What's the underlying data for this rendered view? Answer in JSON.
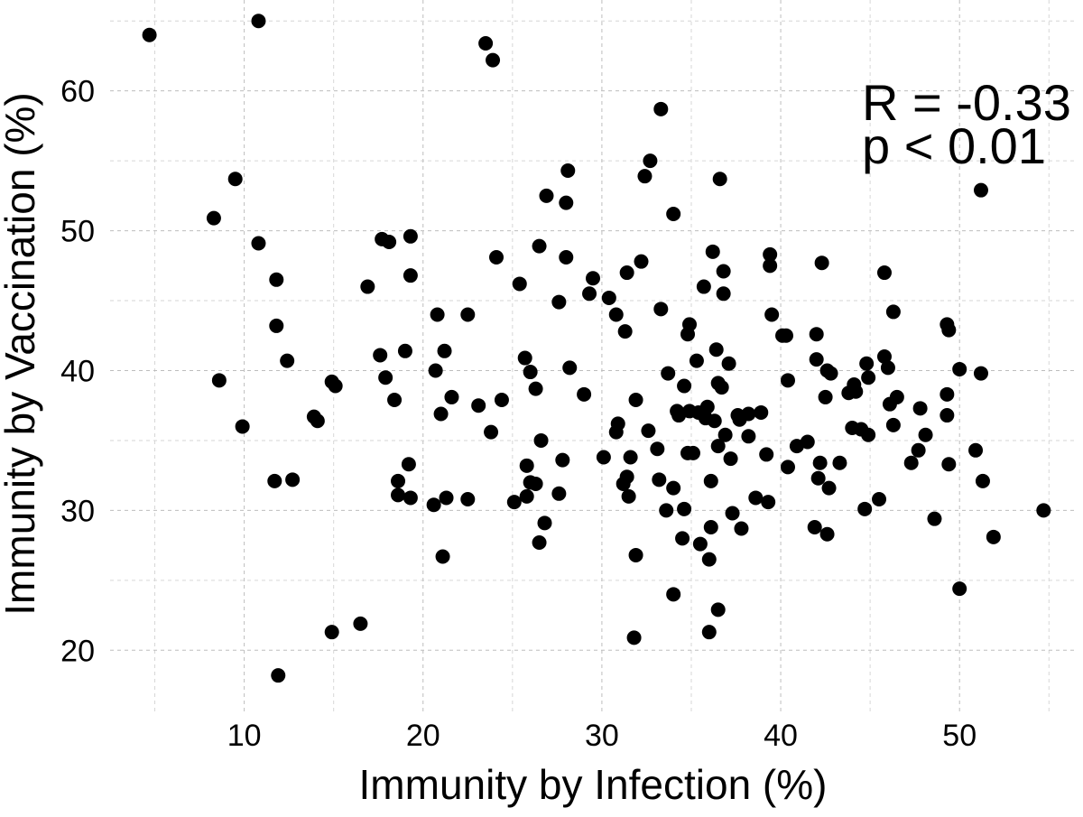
{
  "chart_data": {
    "type": "scatter",
    "title": "",
    "xlabel": "Immunity by Infection (%)",
    "ylabel": "Immunity by Vaccination (%)",
    "xlim": [
      2.5,
      56.5
    ],
    "ylim": [
      15.5,
      66.5
    ],
    "x_ticks": [
      10,
      20,
      30,
      40,
      50
    ],
    "y_ticks": [
      20,
      30,
      40,
      50,
      60
    ],
    "x_ticks_minor": [
      5,
      15,
      25,
      35,
      45,
      55
    ],
    "y_ticks_minor": [
      25,
      35,
      45,
      55,
      65
    ],
    "grid": true,
    "marker_color": "#000000",
    "annotations": [
      "R = -0.33",
      "p < 0.01"
    ],
    "points": [
      [
        4.7,
        64.0
      ],
      [
        10.8,
        65.0
      ],
      [
        23.5,
        63.4
      ],
      [
        23.9,
        62.2
      ],
      [
        33.3,
        58.7
      ],
      [
        9.5,
        53.7
      ],
      [
        8.3,
        50.9
      ],
      [
        10.8,
        49.1
      ],
      [
        11.8,
        46.5
      ],
      [
        11.8,
        43.2
      ],
      [
        12.4,
        40.7
      ],
      [
        8.6,
        39.3
      ],
      [
        9.9,
        36.0
      ],
      [
        11.7,
        32.1
      ],
      [
        12.7,
        32.2
      ],
      [
        13.9,
        36.7
      ],
      [
        14.1,
        36.4
      ],
      [
        14.9,
        39.2
      ],
      [
        15.1,
        38.9
      ],
      [
        14.9,
        21.3
      ],
      [
        16.5,
        21.9
      ],
      [
        11.9,
        18.2
      ],
      [
        16.9,
        46.0
      ],
      [
        17.7,
        49.4
      ],
      [
        18.1,
        49.2
      ],
      [
        19.3,
        49.6
      ],
      [
        19.3,
        46.8
      ],
      [
        17.6,
        41.1
      ],
      [
        17.9,
        39.5
      ],
      [
        19.0,
        41.4
      ],
      [
        18.4,
        37.9
      ],
      [
        18.6,
        32.1
      ],
      [
        19.2,
        33.3
      ],
      [
        18.6,
        31.1
      ],
      [
        19.3,
        30.9
      ],
      [
        20.6,
        30.4
      ],
      [
        20.8,
        44.0
      ],
      [
        21.2,
        41.4
      ],
      [
        20.7,
        40.0
      ],
      [
        21.0,
        36.9
      ],
      [
        21.6,
        38.1
      ],
      [
        21.3,
        30.9
      ],
      [
        21.1,
        26.7
      ],
      [
        22.5,
        44.0
      ],
      [
        23.1,
        37.5
      ],
      [
        22.5,
        30.8
      ],
      [
        23.8,
        35.6
      ],
      [
        24.4,
        37.9
      ],
      [
        24.1,
        48.1
      ],
      [
        25.1,
        30.6
      ],
      [
        25.4,
        46.2
      ],
      [
        25.7,
        40.9
      ],
      [
        26.0,
        39.9
      ],
      [
        26.3,
        38.7
      ],
      [
        25.8,
        33.2
      ],
      [
        26.0,
        32.0
      ],
      [
        26.3,
        31.9
      ],
      [
        25.8,
        31.0
      ],
      [
        26.6,
        35.0
      ],
      [
        26.8,
        29.1
      ],
      [
        26.5,
        27.7
      ],
      [
        26.9,
        52.5
      ],
      [
        26.5,
        48.9
      ],
      [
        28.0,
        52.0
      ],
      [
        28.1,
        54.3
      ],
      [
        28.0,
        48.1
      ],
      [
        27.6,
        44.9
      ],
      [
        28.2,
        40.2
      ],
      [
        27.8,
        33.6
      ],
      [
        27.6,
        31.2
      ],
      [
        29.0,
        38.3
      ],
      [
        29.3,
        45.5
      ],
      [
        29.5,
        46.6
      ],
      [
        30.1,
        33.8
      ],
      [
        30.4,
        45.2
      ],
      [
        30.8,
        44.0
      ],
      [
        30.9,
        36.2
      ],
      [
        30.8,
        35.6
      ],
      [
        31.3,
        42.8
      ],
      [
        31.4,
        47.0
      ],
      [
        31.2,
        31.9
      ],
      [
        31.4,
        32.4
      ],
      [
        31.5,
        31.0
      ],
      [
        31.6,
        33.8
      ],
      [
        31.8,
        20.9
      ],
      [
        31.9,
        26.8
      ],
      [
        31.9,
        37.9
      ],
      [
        32.2,
        47.8
      ],
      [
        32.4,
        53.9
      ],
      [
        32.6,
        35.7
      ],
      [
        32.7,
        55.0
      ],
      [
        33.1,
        34.4
      ],
      [
        33.3,
        44.4
      ],
      [
        33.2,
        32.2
      ],
      [
        33.6,
        30.0
      ],
      [
        33.7,
        39.8
      ],
      [
        34.0,
        51.2
      ],
      [
        34.0,
        24.0
      ],
      [
        34.0,
        31.6
      ],
      [
        34.2,
        37.1
      ],
      [
        34.3,
        36.8
      ],
      [
        34.5,
        28.0
      ],
      [
        34.6,
        30.1
      ],
      [
        34.6,
        38.9
      ],
      [
        34.8,
        42.6
      ],
      [
        34.9,
        43.3
      ],
      [
        34.8,
        34.1
      ],
      [
        34.9,
        37.1
      ],
      [
        35.1,
        34.1
      ],
      [
        35.3,
        40.7
      ],
      [
        35.4,
        37.0
      ],
      [
        35.5,
        27.6
      ],
      [
        35.7,
        46.0
      ],
      [
        35.8,
        36.6
      ],
      [
        35.9,
        37.4
      ],
      [
        36.0,
        21.3
      ],
      [
        36.0,
        26.5
      ],
      [
        36.1,
        28.8
      ],
      [
        36.1,
        32.1
      ],
      [
        36.2,
        48.5
      ],
      [
        36.3,
        36.4
      ],
      [
        36.4,
        41.5
      ],
      [
        36.5,
        22.9
      ],
      [
        36.5,
        34.6
      ],
      [
        36.5,
        39.1
      ],
      [
        36.6,
        53.7
      ],
      [
        36.7,
        38.8
      ],
      [
        36.8,
        47.1
      ],
      [
        36.8,
        45.5
      ],
      [
        36.9,
        35.4
      ],
      [
        37.1,
        40.5
      ],
      [
        37.2,
        33.7
      ],
      [
        37.3,
        29.8
      ],
      [
        37.6,
        36.8
      ],
      [
        37.7,
        36.5
      ],
      [
        37.8,
        28.7
      ],
      [
        38.2,
        36.9
      ],
      [
        38.2,
        35.3
      ],
      [
        38.6,
        30.9
      ],
      [
        38.9,
        37.0
      ],
      [
        39.2,
        34.0
      ],
      [
        39.3,
        30.6
      ],
      [
        39.4,
        48.3
      ],
      [
        39.4,
        47.5
      ],
      [
        39.5,
        44.0
      ],
      [
        40.1,
        42.5
      ],
      [
        40.3,
        42.5
      ],
      [
        40.4,
        39.3
      ],
      [
        40.4,
        33.1
      ],
      [
        40.9,
        34.6
      ],
      [
        41.5,
        34.9
      ],
      [
        41.9,
        28.8
      ],
      [
        42.0,
        42.6
      ],
      [
        42.0,
        40.8
      ],
      [
        42.1,
        32.3
      ],
      [
        42.2,
        33.4
      ],
      [
        42.3,
        47.7
      ],
      [
        42.5,
        38.1
      ],
      [
        42.6,
        40.0
      ],
      [
        42.6,
        28.3
      ],
      [
        42.7,
        31.6
      ],
      [
        42.8,
        39.8
      ],
      [
        43.3,
        33.4
      ],
      [
        43.8,
        38.4
      ],
      [
        44.0,
        35.9
      ],
      [
        44.1,
        39.0
      ],
      [
        44.2,
        38.5
      ],
      [
        44.5,
        35.8
      ],
      [
        44.7,
        30.1
      ],
      [
        44.8,
        40.5
      ],
      [
        44.9,
        39.5
      ],
      [
        44.9,
        35.4
      ],
      [
        45.5,
        30.8
      ],
      [
        45.8,
        47.0
      ],
      [
        45.8,
        41.0
      ],
      [
        46.0,
        40.2
      ],
      [
        46.1,
        37.6
      ],
      [
        46.3,
        44.2
      ],
      [
        46.3,
        36.1
      ],
      [
        46.5,
        38.1
      ],
      [
        47.3,
        33.4
      ],
      [
        47.7,
        34.3
      ],
      [
        47.8,
        37.3
      ],
      [
        48.1,
        35.4
      ],
      [
        48.6,
        29.4
      ],
      [
        49.3,
        43.3
      ],
      [
        49.4,
        42.9
      ],
      [
        49.3,
        38.3
      ],
      [
        49.3,
        36.8
      ],
      [
        49.4,
        33.3
      ],
      [
        50.0,
        40.1
      ],
      [
        50.0,
        24.4
      ],
      [
        50.9,
        34.3
      ],
      [
        51.2,
        52.9
      ],
      [
        51.2,
        39.8
      ],
      [
        51.3,
        32.1
      ],
      [
        51.9,
        28.1
      ],
      [
        54.7,
        30.0
      ]
    ]
  }
}
